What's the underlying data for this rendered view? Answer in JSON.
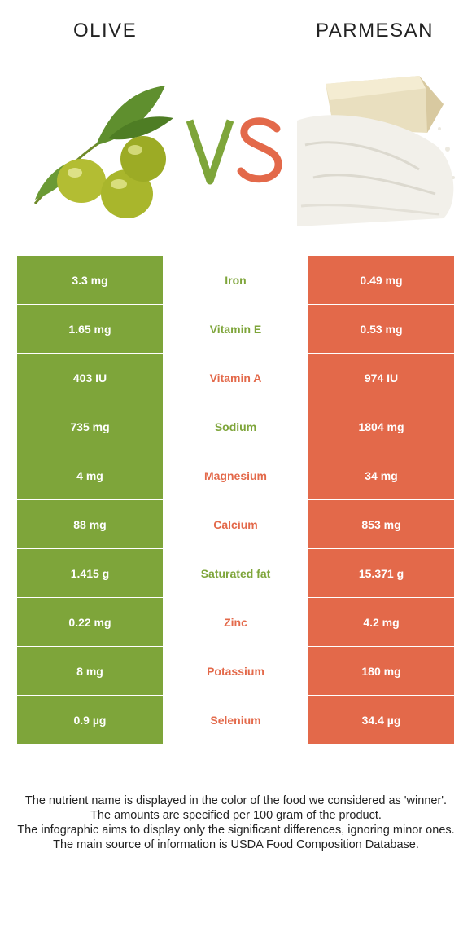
{
  "header": {
    "left_title": "OLIVE",
    "right_title": "PARMESAN"
  },
  "colors": {
    "olive": "#7ea53a",
    "parmesan": "#e3694a"
  },
  "rows": [
    {
      "nutrient": "Iron",
      "olive": "3.3 mg",
      "parmesan": "0.49 mg",
      "winner": "olive"
    },
    {
      "nutrient": "Vitamin E",
      "olive": "1.65 mg",
      "parmesan": "0.53 mg",
      "winner": "olive"
    },
    {
      "nutrient": "Vitamin A",
      "olive": "403 IU",
      "parmesan": "974 IU",
      "winner": "parmesan"
    },
    {
      "nutrient": "Sodium",
      "olive": "735 mg",
      "parmesan": "1804 mg",
      "winner": "olive"
    },
    {
      "nutrient": "Magnesium",
      "olive": "4 mg",
      "parmesan": "34 mg",
      "winner": "parmesan"
    },
    {
      "nutrient": "Calcium",
      "olive": "88 mg",
      "parmesan": "853 mg",
      "winner": "parmesan"
    },
    {
      "nutrient": "Saturated fat",
      "olive": "1.415 g",
      "parmesan": "15.371 g",
      "winner": "olive"
    },
    {
      "nutrient": "Zinc",
      "olive": "0.22 mg",
      "parmesan": "4.2 mg",
      "winner": "parmesan"
    },
    {
      "nutrient": "Potassium",
      "olive": "8 mg",
      "parmesan": "180 mg",
      "winner": "parmesan"
    },
    {
      "nutrient": "Selenium",
      "olive": "0.9 µg",
      "parmesan": "34.4 µg",
      "winner": "parmesan"
    }
  ],
  "notes": [
    "The nutrient name is displayed in the color of the food we considered as 'winner'.",
    "The amounts are specified per 100 gram of the product.",
    "The infographic aims to display only the significant differences, ignoring minor ones.",
    "The main source of information is USDA Food Composition Database."
  ]
}
